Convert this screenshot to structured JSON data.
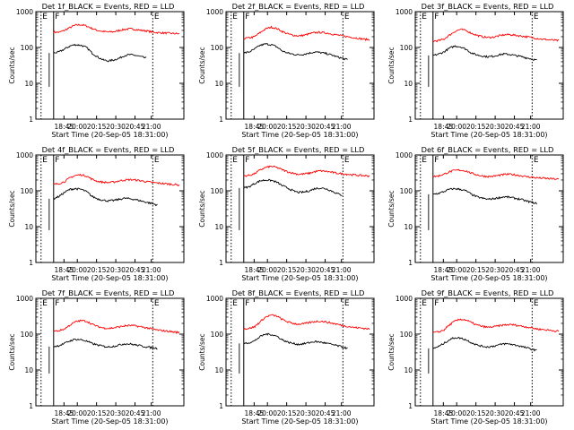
{
  "figure": {
    "x_title": "Start Time (20-Sep-05 18:31:00)",
    "y_title": "Counts/sec",
    "y_ticks": [
      "1",
      "10",
      "100",
      "1000"
    ],
    "x_ticks": [
      "18:45",
      "20:00",
      "20:15",
      "20:30",
      "20:45",
      "21:00"
    ],
    "colors": {
      "events": "#000000",
      "lld": "#ff0000"
    }
  },
  "chart_data": [
    {
      "type": "line",
      "title": "Det  1f_BLACK = Events, RED = LLD",
      "xlabel": "Start Time (20-Sep-05 18:31:00)",
      "ylabel": "Counts/sec",
      "yscale": "log",
      "ylim": [
        1,
        1000
      ],
      "x": [
        0,
        0.03,
        0.06,
        0.08,
        0.1,
        0.12,
        0.15,
        0.2,
        0.25,
        0.3,
        0.35,
        0.4,
        0.45,
        0.5,
        0.55,
        0.6,
        0.65,
        0.7,
        0.75,
        0.8,
        0.85,
        0.9,
        0.95,
        1.0
      ],
      "series": [
        {
          "name": "LLD",
          "color": "red",
          "values": [
            270,
            265,
            300,
            360,
            420,
            430,
            400,
            340,
            300,
            280,
            270,
            275,
            300,
            320,
            330,
            320,
            300,
            290,
            270,
            260,
            255,
            250,
            245,
            240
          ]
        },
        {
          "name": "Events",
          "color": "black",
          "values": [
            70,
            75,
            90,
            110,
            120,
            115,
            100,
            70,
            55,
            45,
            42,
            45,
            50,
            60,
            63,
            60,
            55,
            50,
            null,
            null,
            null,
            null,
            null,
            null
          ]
        }
      ],
      "markers": [
        {
          "label": "E",
          "style": "dotted"
        },
        {
          "label": "F",
          "style": "solid"
        },
        {
          "label": "E",
          "style": "dotted"
        }
      ]
    },
    {
      "type": "line",
      "title": "Det  2f_BLACK = Events, RED = LLD",
      "xlabel": "Start Time (20-Sep-05 18:31:00)",
      "ylabel": "Counts/sec",
      "yscale": "log",
      "ylim": [
        1,
        1000
      ],
      "x": [
        0,
        0.03,
        0.06,
        0.08,
        0.1,
        0.12,
        0.15,
        0.2,
        0.25,
        0.3,
        0.35,
        0.4,
        0.45,
        0.5,
        0.55,
        0.6,
        0.65,
        0.7,
        0.75,
        0.8,
        0.85,
        0.9,
        0.95,
        1.0
      ],
      "series": [
        {
          "name": "LLD",
          "color": "red",
          "values": [
            180,
            185,
            200,
            260,
            330,
            370,
            340,
            280,
            240,
            220,
            210,
            220,
            240,
            260,
            265,
            255,
            240,
            225,
            210,
            200,
            190,
            180,
            170,
            165
          ]
        },
        {
          "name": "Events",
          "color": "black",
          "values": [
            70,
            75,
            90,
            115,
            125,
            120,
            105,
            80,
            70,
            65,
            62,
            65,
            70,
            75,
            72,
            68,
            62,
            55,
            50,
            45,
            null,
            null,
            null,
            null
          ]
        }
      ],
      "markers": [
        {
          "label": "E",
          "style": "dotted"
        },
        {
          "label": "F",
          "style": "solid"
        },
        {
          "label": "E",
          "style": "dotted"
        }
      ]
    },
    {
      "type": "line",
      "title": "Det  3f_BLACK = Events, RED = LLD",
      "xlabel": "Start Time (20-Sep-05 18:31:00)",
      "ylabel": "Counts/sec",
      "yscale": "log",
      "ylim": [
        1,
        1000
      ],
      "x": [
        0,
        0.03,
        0.06,
        0.08,
        0.1,
        0.12,
        0.15,
        0.2,
        0.25,
        0.3,
        0.35,
        0.4,
        0.45,
        0.5,
        0.55,
        0.6,
        0.65,
        0.7,
        0.75,
        0.8,
        0.85,
        0.9,
        0.95,
        1.0
      ],
      "series": [
        {
          "name": "LLD",
          "color": "red",
          "values": [
            150,
            155,
            170,
            220,
            280,
            320,
            300,
            250,
            220,
            200,
            190,
            195,
            210,
            225,
            230,
            220,
            210,
            200,
            190,
            180,
            170,
            165,
            160,
            155
          ]
        },
        {
          "name": "Events",
          "color": "black",
          "values": [
            60,
            65,
            75,
            95,
            110,
            105,
            90,
            70,
            62,
            58,
            55,
            57,
            62,
            66,
            64,
            60,
            56,
            52,
            48,
            44,
            null,
            null,
            null,
            null
          ]
        }
      ],
      "markers": [
        {
          "label": "E",
          "style": "dotted"
        },
        {
          "label": "F",
          "style": "solid"
        },
        {
          "label": "E",
          "style": "dotted"
        }
      ]
    },
    {
      "type": "line",
      "title": "Det  4f_BLACK = Events, RED = LLD",
      "xlabel": "Start Time (20-Sep-05 18:31:00)",
      "ylabel": "Counts/sec",
      "yscale": "log",
      "ylim": [
        1,
        1000
      ],
      "x": [
        0,
        0.03,
        0.06,
        0.08,
        0.1,
        0.12,
        0.15,
        0.2,
        0.25,
        0.3,
        0.35,
        0.4,
        0.45,
        0.5,
        0.55,
        0.6,
        0.65,
        0.7,
        0.75,
        0.8,
        0.85,
        0.9,
        0.95,
        1.0
      ],
      "series": [
        {
          "name": "LLD",
          "color": "red",
          "values": [
            150,
            160,
            180,
            230,
            270,
            280,
            260,
            210,
            185,
            175,
            170,
            175,
            190,
            200,
            205,
            200,
            190,
            180,
            170,
            165,
            160,
            155,
            150,
            145
          ]
        },
        {
          "name": "Events",
          "color": "black",
          "values": [
            60,
            70,
            90,
            110,
            115,
            110,
            95,
            70,
            60,
            55,
            52,
            54,
            58,
            62,
            60,
            57,
            52,
            48,
            44,
            40,
            null,
            null,
            null,
            null
          ]
        }
      ],
      "markers": [
        {
          "label": "E",
          "style": "dotted"
        },
        {
          "label": "F",
          "style": "solid"
        },
        {
          "label": "E",
          "style": "dotted"
        }
      ]
    },
    {
      "type": "line",
      "title": "Det  5f_BLACK = Events, RED = LLD",
      "xlabel": "Start Time (20-Sep-05 18:31:00)",
      "ylabel": "Counts/sec",
      "yscale": "log",
      "ylim": [
        1,
        1000
      ],
      "x": [
        0,
        0.03,
        0.06,
        0.08,
        0.1,
        0.12,
        0.15,
        0.2,
        0.25,
        0.3,
        0.35,
        0.4,
        0.45,
        0.5,
        0.55,
        0.6,
        0.65,
        0.7,
        0.75,
        0.8,
        0.85,
        0.9,
        0.95,
        1.0
      ],
      "series": [
        {
          "name": "LLD",
          "color": "red",
          "values": [
            260,
            270,
            300,
            380,
            450,
            480,
            450,
            390,
            340,
            310,
            290,
            295,
            310,
            340,
            360,
            350,
            330,
            310,
            300,
            290,
            280,
            270,
            265,
            260
          ]
        },
        {
          "name": "Events",
          "color": "black",
          "values": [
            120,
            130,
            160,
            190,
            200,
            195,
            175,
            140,
            120,
            100,
            90,
            92,
            100,
            115,
            120,
            115,
            100,
            85,
            75,
            null,
            null,
            null,
            null,
            null
          ]
        }
      ],
      "markers": [
        {
          "label": "E",
          "style": "dotted"
        },
        {
          "label": "F",
          "style": "solid"
        },
        {
          "label": "E",
          "style": "dotted"
        }
      ]
    },
    {
      "type": "line",
      "title": "Det  6f_BLACK = Events, RED = LLD",
      "xlabel": "Start Time (20-Sep-05 18:31:00)",
      "ylabel": "Counts/sec",
      "yscale": "log",
      "ylim": [
        1,
        1000
      ],
      "x": [
        0,
        0.03,
        0.06,
        0.08,
        0.1,
        0.12,
        0.15,
        0.2,
        0.25,
        0.3,
        0.35,
        0.4,
        0.45,
        0.5,
        0.55,
        0.6,
        0.65,
        0.7,
        0.75,
        0.8,
        0.85,
        0.9,
        0.95,
        1.0
      ],
      "series": [
        {
          "name": "LLD",
          "color": "red",
          "values": [
            250,
            260,
            290,
            340,
            370,
            380,
            360,
            310,
            280,
            260,
            250,
            255,
            270,
            285,
            290,
            280,
            265,
            250,
            240,
            230,
            225,
            220,
            215,
            210
          ]
        },
        {
          "name": "Events",
          "color": "black",
          "values": [
            80,
            85,
            95,
            110,
            115,
            110,
            100,
            80,
            68,
            62,
            58,
            60,
            64,
            68,
            66,
            62,
            58,
            52,
            48,
            44,
            null,
            null,
            null,
            null
          ]
        }
      ],
      "markers": [
        {
          "label": "E",
          "style": "dotted"
        },
        {
          "label": "F",
          "style": "solid"
        },
        {
          "label": "E",
          "style": "dotted"
        }
      ]
    },
    {
      "type": "line",
      "title": "Det  7f_BLACK = Events, RED = LLD",
      "xlabel": "Start Time (20-Sep-05 18:31:00)",
      "ylabel": "Counts/sec",
      "yscale": "log",
      "ylim": [
        1,
        1000
      ],
      "x": [
        0,
        0.03,
        0.06,
        0.08,
        0.1,
        0.12,
        0.15,
        0.2,
        0.25,
        0.3,
        0.35,
        0.4,
        0.45,
        0.5,
        0.55,
        0.6,
        0.65,
        0.7,
        0.75,
        0.8,
        0.85,
        0.9,
        0.95,
        1.0
      ],
      "series": [
        {
          "name": "LLD",
          "color": "red",
          "values": [
            120,
            125,
            140,
            180,
            220,
            240,
            230,
            190,
            165,
            150,
            145,
            150,
            160,
            170,
            175,
            170,
            160,
            150,
            140,
            130,
            125,
            120,
            115,
            110
          ]
        },
        {
          "name": "Events",
          "color": "black",
          "values": [
            45,
            48,
            55,
            65,
            72,
            70,
            64,
            55,
            50,
            46,
            44,
            46,
            50,
            54,
            53,
            50,
            47,
            44,
            42,
            40,
            null,
            null,
            null,
            null
          ]
        }
      ],
      "markers": [
        {
          "label": "E",
          "style": "dotted"
        },
        {
          "label": "F",
          "style": "solid"
        },
        {
          "label": "E",
          "style": "dotted"
        }
      ]
    },
    {
      "type": "line",
      "title": "Det  8f_BLACK = Events, RED = LLD",
      "xlabel": "Start Time (20-Sep-05 18:31:00)",
      "ylabel": "Counts/sec",
      "yscale": "log",
      "ylim": [
        1,
        1000
      ],
      "x": [
        0,
        0.03,
        0.06,
        0.08,
        0.1,
        0.12,
        0.15,
        0.2,
        0.25,
        0.3,
        0.35,
        0.4,
        0.45,
        0.5,
        0.55,
        0.6,
        0.65,
        0.7,
        0.75,
        0.8,
        0.85,
        0.9,
        0.95,
        1.0
      ],
      "series": [
        {
          "name": "LLD",
          "color": "red",
          "values": [
            140,
            145,
            160,
            220,
            300,
            340,
            320,
            260,
            220,
            200,
            190,
            195,
            210,
            225,
            230,
            220,
            205,
            190,
            175,
            165,
            155,
            150,
            145,
            140
          ]
        },
        {
          "name": "Events",
          "color": "black",
          "values": [
            55,
            58,
            65,
            85,
            100,
            98,
            88,
            70,
            60,
            55,
            52,
            54,
            58,
            62,
            60,
            56,
            52,
            48,
            44,
            40,
            null,
            null,
            null,
            null
          ]
        }
      ],
      "markers": [
        {
          "label": "E",
          "style": "dotted"
        },
        {
          "label": "F",
          "style": "solid"
        },
        {
          "label": "E",
          "style": "dotted"
        }
      ]
    },
    {
      "type": "line",
      "title": "Det  9f_BLACK = Events, RED = LLD",
      "xlabel": "Start Time (20-Sep-05 18:31:00)",
      "ylabel": "Counts/sec",
      "yscale": "log",
      "ylim": [
        1,
        1000
      ],
      "x": [
        0,
        0.03,
        0.06,
        0.08,
        0.1,
        0.12,
        0.15,
        0.2,
        0.25,
        0.3,
        0.35,
        0.4,
        0.45,
        0.5,
        0.55,
        0.6,
        0.65,
        0.7,
        0.75,
        0.8,
        0.85,
        0.9,
        0.95,
        1.0
      ],
      "series": [
        {
          "name": "LLD",
          "color": "red",
          "values": [
            110,
            115,
            130,
            180,
            230,
            260,
            250,
            210,
            180,
            165,
            155,
            160,
            170,
            180,
            185,
            180,
            170,
            160,
            150,
            140,
            135,
            130,
            125,
            120
          ]
        },
        {
          "name": "Events",
          "color": "black",
          "values": [
            40,
            45,
            55,
            70,
            80,
            78,
            70,
            58,
            50,
            46,
            44,
            46,
            50,
            54,
            53,
            50,
            46,
            42,
            38,
            35,
            null,
            null,
            null,
            null
          ]
        }
      ],
      "markers": [
        {
          "label": "E",
          "style": "dotted"
        },
        {
          "label": "F",
          "style": "solid"
        },
        {
          "label": "E",
          "style": "dotted"
        }
      ]
    }
  ]
}
